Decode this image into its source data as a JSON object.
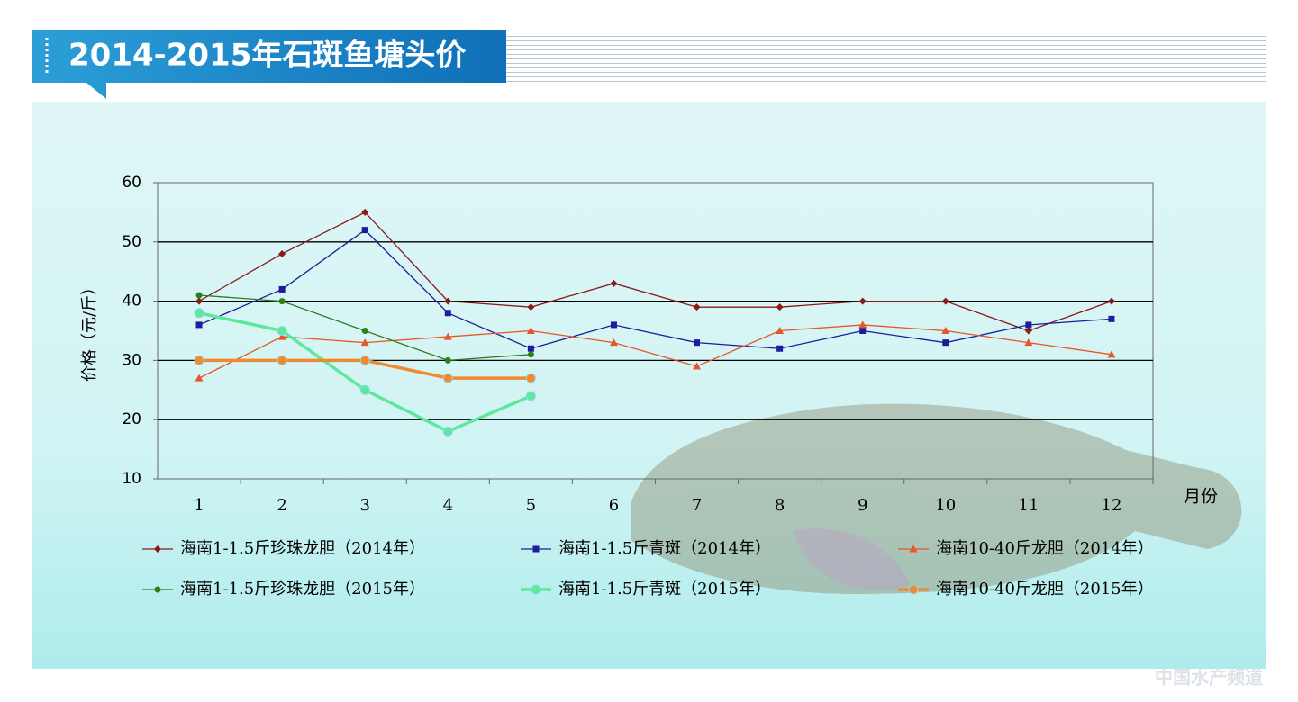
{
  "chart_data": {
    "type": "line",
    "title": "2014-2015年石斑鱼塘头价",
    "y_label": "价格（元/斤）",
    "x_label": "月份",
    "categories": [
      "1",
      "2",
      "3",
      "4",
      "5",
      "6",
      "7",
      "8",
      "9",
      "10",
      "11",
      "12"
    ],
    "ylim": [
      10,
      60
    ],
    "yticks": [
      10,
      20,
      30,
      40,
      50,
      60
    ],
    "grid": true,
    "series": [
      {
        "name": "海南1-1.5斤珍珠龙胆（2014年）",
        "color": "#8b1a1a",
        "marker": "diamond",
        "line_style": "thin",
        "values": [
          40,
          48,
          55,
          40,
          39,
          43,
          39,
          39,
          40,
          40,
          35,
          40
        ]
      },
      {
        "name": "海南1-1.5斤青斑（2014年）",
        "color": "#1c1c9c",
        "marker": "square",
        "line_style": "thin",
        "values": [
          36,
          42,
          52,
          38,
          32,
          36,
          33,
          32,
          35,
          33,
          36,
          37
        ]
      },
      {
        "name": "海南10-40斤龙胆（2014年）",
        "color": "#e8552a",
        "marker": "triangle",
        "line_style": "thin",
        "values": [
          27,
          34,
          33,
          34,
          35,
          33,
          29,
          35,
          36,
          35,
          33,
          31
        ]
      },
      {
        "name": "海南1-1.5斤珍珠龙胆（2015年）",
        "color": "#2e7d1e",
        "marker": "circle",
        "line_style": "thin",
        "values": [
          41,
          40,
          35,
          30,
          31,
          null,
          null,
          null,
          null,
          null,
          null,
          null
        ]
      },
      {
        "name": "海南1-1.5斤青斑（2015年）",
        "color": "#5ee89c",
        "marker": "circle",
        "line_style": "bold",
        "values": [
          38,
          35,
          25,
          18,
          24,
          null,
          null,
          null,
          null,
          null,
          null,
          null
        ]
      },
      {
        "name": "海南10-40斤龙胆（2015年）",
        "color": "#f08a30",
        "marker": "circle",
        "line_style": "bold",
        "values": [
          30,
          30,
          30,
          27,
          27,
          null,
          null,
          null,
          null,
          null,
          null,
          null
        ]
      }
    ]
  },
  "watermark": "中国水产频道"
}
